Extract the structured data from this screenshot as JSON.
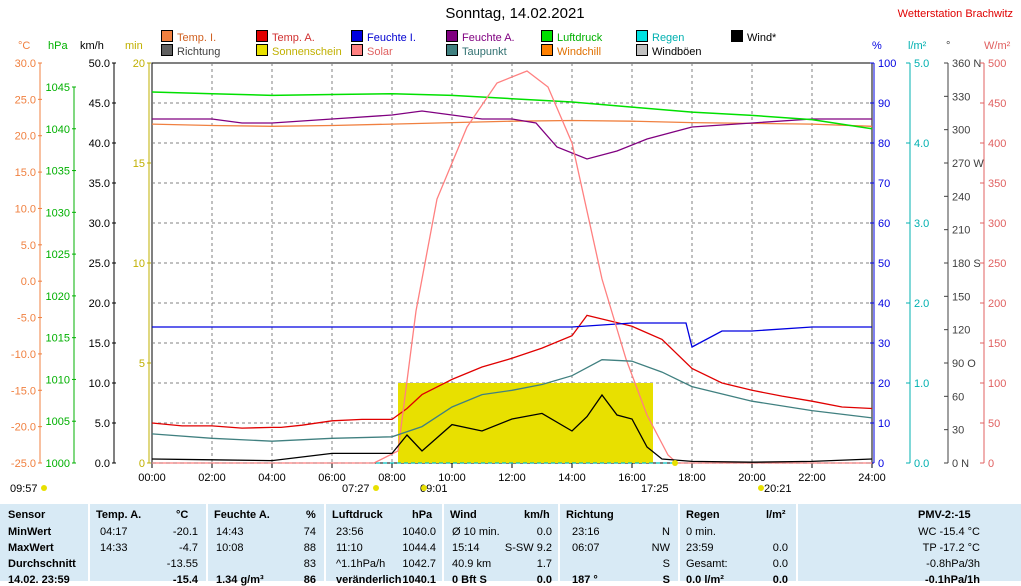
{
  "title": "Sonntag, 14.02.2021",
  "station": "Wetterstation Brachwitz",
  "legend": [
    {
      "label": "Temp. I.",
      "color": "#f08040",
      "text_color": "#d06020"
    },
    {
      "label": "Temp. A.",
      "color": "#e00000",
      "text_color": "#d03030"
    },
    {
      "label": "Feuchte I.",
      "color": "#0000e0",
      "text_color": "#0000d0"
    },
    {
      "label": "Feuchte A.",
      "color": "#800080",
      "text_color": "#800080"
    },
    {
      "label": "Luftdruck",
      "color": "#00e000",
      "text_color": "#00b000"
    },
    {
      "label": "Regen",
      "color": "#00e0e0",
      "text_color": "#00b0b0"
    },
    {
      "label": "Wind*",
      "color": "#000000",
      "text_color": "#000000"
    },
    {
      "label": "Richtung",
      "color": "#606060",
      "text_color": "#404040"
    },
    {
      "label": "Sonnenschein",
      "color": "#e8e000",
      "text_color": "#c0b000"
    },
    {
      "label": "Solar",
      "color": "#ff8080",
      "text_color": "#e06060"
    },
    {
      "label": "Taupunkt",
      "color": "#408080",
      "text_color": "#307070"
    },
    {
      "label": "Windchill",
      "color": "#ff8000",
      "text_color": "#e07000"
    },
    {
      "label": "Windböen",
      "color": "#c0c0c0",
      "text_color": "#000000"
    }
  ],
  "axes": {
    "temp": {
      "unit": "°C",
      "ticks": [
        "30.0",
        "25.0",
        "20.0",
        "15.0",
        "10.0",
        "5.0",
        "0.0",
        "-5.0",
        "-10.0",
        "-15.0",
        "-20.0",
        "-25.0"
      ],
      "color": "#f08040"
    },
    "pressure": {
      "unit": "hPa",
      "ticks": [
        "1045",
        "1040",
        "1035",
        "1030",
        "1025",
        "1020",
        "1015",
        "1010",
        "1005",
        "1000"
      ],
      "color": "#00b000"
    },
    "wind": {
      "unit": "km/h",
      "ticks": [
        "50.0",
        "45.0",
        "40.0",
        "35.0",
        "30.0",
        "25.0",
        "20.0",
        "15.0",
        "10.0",
        "5.0",
        "0.0"
      ],
      "color": "#000000"
    },
    "sun": {
      "unit": "min",
      "ticks": [
        "20",
        "15",
        "10",
        "5",
        "0"
      ],
      "color": "#c0b000"
    },
    "hum": {
      "unit": "%",
      "ticks": [
        "100",
        "90",
        "80",
        "70",
        "60",
        "50",
        "40",
        "30",
        "20",
        "10",
        "0"
      ],
      "color": "#0000e0"
    },
    "rain": {
      "unit": "l/m²",
      "ticks": [
        "5.0",
        "4.0",
        "3.0",
        "2.0",
        "1.0",
        "0.0"
      ],
      "color": "#00b0b0"
    },
    "dir": {
      "unit": "°",
      "ticks": [
        "360 N",
        "330",
        "300",
        "270 W",
        "240",
        "210",
        "180 S",
        "150",
        "120",
        "90 O",
        "60",
        "30",
        "0   N"
      ],
      "color": "#404040"
    },
    "solar": {
      "unit": "W/m²",
      "ticks": [
        "500",
        "450",
        "400",
        "350",
        "300",
        "250",
        "200",
        "150",
        "100",
        "50",
        "0"
      ],
      "color": "#e06060"
    },
    "time": [
      "00:00",
      "02:00",
      "04:00",
      "06:00",
      "08:00",
      "10:00",
      "12:00",
      "14:00",
      "16:00",
      "18:00",
      "20:00",
      "22:00",
      "24:00"
    ]
  },
  "events": {
    "left_time": "09:57",
    "sunrise": "07:27",
    "sun_time": "09:01",
    "sunset": "17:25",
    "moon_time": "20:21"
  },
  "chart_data": {
    "type": "line",
    "x_unit": "hours",
    "xlim": [
      0,
      24
    ],
    "series": [
      {
        "name": "Temp. I.",
        "unit": "°C",
        "x": [
          0,
          2,
          4,
          6,
          8,
          10,
          12,
          14,
          16,
          18,
          20,
          22,
          24
        ],
        "y": [
          21.6,
          21.4,
          21.3,
          21.4,
          21.6,
          21.8,
          22.0,
          22.1,
          22.0,
          21.8,
          21.7,
          21.6,
          21.3
        ]
      },
      {
        "name": "Temp. A.",
        "unit": "°C",
        "x": [
          0,
          1,
          2,
          3,
          4,
          4.3,
          5,
          6,
          7,
          8,
          8.5,
          9,
          10,
          11,
          12,
          13,
          14,
          14.5,
          15,
          16,
          17,
          18,
          19,
          20,
          21,
          22,
          23,
          24
        ],
        "y": [
          -19.5,
          -19.9,
          -19.9,
          -20.2,
          -20.1,
          -20.1,
          -19.8,
          -19.2,
          -19.0,
          -19.0,
          -17.5,
          -15.6,
          -13.5,
          -11.8,
          -10.6,
          -9.2,
          -7.5,
          -4.7,
          -5.2,
          -6.2,
          -8.0,
          -12.0,
          -14.0,
          -15.0,
          -15.8,
          -16.5,
          -17.3,
          -17.5
        ]
      },
      {
        "name": "Feuchte I.",
        "unit": "%",
        "x": [
          0,
          4,
          8,
          10,
          12,
          14,
          16,
          17.8,
          18,
          19,
          20,
          22,
          24
        ],
        "y": [
          34,
          34,
          34,
          34,
          34,
          34,
          35,
          35,
          29,
          33,
          33,
          34,
          34
        ]
      },
      {
        "name": "Feuchte A.",
        "unit": "%",
        "x": [
          0,
          2,
          3,
          4,
          6,
          8,
          9,
          10,
          11,
          12,
          12.8,
          13.5,
          14.5,
          15.5,
          16.5,
          17,
          18,
          20,
          22,
          24
        ],
        "y": [
          86,
          86,
          85,
          85,
          86,
          87,
          88,
          87,
          86,
          86,
          85,
          79,
          76,
          78,
          81,
          82,
          84,
          85,
          86,
          86
        ]
      },
      {
        "name": "Luftdruck",
        "unit": "hPa",
        "x": [
          0,
          2,
          4,
          6,
          8,
          10,
          12,
          14,
          16,
          18,
          20,
          22,
          24
        ],
        "y": [
          1044.4,
          1044.2,
          1044.0,
          1044.1,
          1044.2,
          1044.0,
          1043.6,
          1043.2,
          1042.6,
          1042.0,
          1041.6,
          1041.1,
          1040.0
        ]
      },
      {
        "name": "Regen",
        "unit": "l/m²",
        "x": [
          0,
          24
        ],
        "y": [
          0,
          0
        ]
      },
      {
        "name": "Solar",
        "unit": "W/m²",
        "x": [
          0,
          7.4,
          8.2,
          8.8,
          9.5,
          10.5,
          11.5,
          12.5,
          13.2,
          14,
          15,
          15.8,
          16.5,
          17.2,
          17.5,
          24
        ],
        "y": [
          0,
          0,
          15,
          190,
          330,
          420,
          475,
          490,
          470,
          400,
          230,
          130,
          60,
          10,
          0,
          0
        ]
      },
      {
        "name": "Taupunkt",
        "unit": "°C",
        "x": [
          0,
          2,
          4,
          6,
          8,
          9,
          10,
          11,
          12,
          13,
          14,
          15,
          16,
          17,
          18,
          20,
          22,
          24
        ],
        "y": [
          -21.0,
          -21.6,
          -22.0,
          -21.6,
          -21.4,
          -20.0,
          -17.3,
          -15.6,
          -15.0,
          -14.2,
          -13.0,
          -10.8,
          -11.0,
          -12.5,
          -14.5,
          -16.5,
          -17.8,
          -18.8
        ]
      },
      {
        "name": "Wind*",
        "unit": "km/h",
        "x": [
          0,
          2,
          4,
          6,
          8,
          8.5,
          9,
          10,
          11,
          12,
          13,
          14,
          14.5,
          15,
          15.5,
          16,
          16.5,
          17,
          18,
          20,
          22,
          24
        ],
        "y": [
          0.5,
          0.4,
          0.3,
          1.2,
          1.2,
          3.5,
          1.5,
          4.8,
          4.0,
          5.5,
          6.2,
          4.0,
          5.8,
          8.5,
          6.0,
          5.5,
          2.0,
          0.5,
          0.2,
          0.1,
          0.2,
          0.5
        ]
      },
      {
        "name": "Sonnenschein",
        "unit": "min",
        "x": [
          8.2,
          16.7
        ],
        "y": [
          4,
          4
        ]
      }
    ]
  },
  "stats": {
    "header": [
      "Sensor",
      "Temp. A.",
      "°C",
      "Feuchte A.",
      "%",
      "Luftdruck",
      "hPa",
      "Wind",
      "km/h",
      "Richtung",
      "",
      "Regen",
      "l/m²",
      "PMV-2:-15"
    ],
    "rows": [
      {
        "label": "MinWert",
        "ta_time": "04:17",
        "ta_val": "-20.1",
        "fa_time": "14:43",
        "fa_val": "74",
        "lp_time": "23:56",
        "lp_val": "1040.0",
        "w_time": "Ø 10 min.",
        "w_val": "0.0",
        "r_time": "23:16",
        "r_val": "N",
        "rg_time": "0 min.",
        "rg_val": "",
        "right": "WC -15.4 °C"
      },
      {
        "label": "MaxWert",
        "ta_time": "14:33",
        "ta_val": "-4.7",
        "fa_time": "10:08",
        "fa_val": "88",
        "lp_time": "11:10",
        "lp_val": "1044.4",
        "w_time": "15:14",
        "w_val": "S-SW 9.2",
        "r_time": "06:07",
        "r_val": "NW",
        "rg_time": "23:59",
        "rg_val": "0.0",
        "right": "TP -17.2 °C"
      },
      {
        "label": "Durchschnitt",
        "ta_time": "",
        "ta_val": "-13.55",
        "fa_time": "",
        "fa_val": "83",
        "lp_time": "^1.1hPa/h",
        "lp_val": "1042.7",
        "w_time": "40.9 km",
        "w_val": "1.7",
        "r_time": "",
        "r_val": "S",
        "rg_time": "Gesamt:",
        "rg_val": "0.0",
        "right": "-0.8hPa/3h"
      },
      {
        "label": "14.02. 23:59",
        "ta_time": "",
        "ta_val": "-15.4",
        "fa_time": "1.34 g/m³",
        "fa_val": "86",
        "lp_time": "veränderlich",
        "lp_val": "1040.1",
        "w_time": "0 Bft S",
        "w_val": "0.0",
        "r_time": "187 °",
        "r_val": "S",
        "rg_time": "0.0 l/m²",
        "rg_val": "0.0",
        "right": "-0.1hPa/1h"
      }
    ]
  }
}
